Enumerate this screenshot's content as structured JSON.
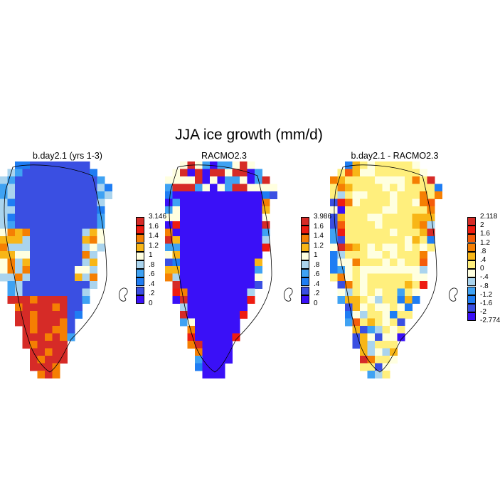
{
  "title": "JJA ice growth (mm/d)",
  "chart_data": [
    {
      "type": "heatmap",
      "title": "b.day2.1 (yrs 1-3)",
      "colorbar": {
        "labels": [
          "3.146",
          "1.6",
          "1.4",
          "1.2",
          "1",
          ".8",
          ".6",
          ".4",
          ".2",
          "0"
        ],
        "colors": [
          "#d62b27",
          "#ee1c11",
          "#f57f03",
          "#f8b617",
          "#ffffe0",
          "#aad4ee",
          "#3fa2f3",
          "#1f7df3",
          "#3a4fe2",
          "#3a10f7"
        ]
      },
      "dominant_value_range": [
        0.2,
        0.4
      ]
    },
    {
      "type": "heatmap",
      "title": "RACMO2.3",
      "colorbar": {
        "labels": [
          "3.986",
          "1.6",
          "1.4",
          "1.2",
          "1",
          ".8",
          ".6",
          ".4",
          ".2",
          "0"
        ],
        "colors": [
          "#d62b27",
          "#ee1c11",
          "#f57f03",
          "#f8b617",
          "#ffffe0",
          "#aad4ee",
          "#3fa2f3",
          "#1f7df3",
          "#3a4fe2",
          "#3a10f7"
        ]
      },
      "dominant_value_range": [
        0,
        0.2
      ]
    },
    {
      "type": "heatmap",
      "title": "b.day2.1 - RACMO2.3",
      "colorbar": {
        "labels": [
          "2.118",
          "2",
          "1.6",
          "1.2",
          ".8",
          ".4",
          "0",
          "-.4",
          "-.8",
          "-1.2",
          "-1.6",
          "-2",
          "-2.774"
        ],
        "colors": [
          "#d62b27",
          "#ee1c11",
          "#f55c0a",
          "#f57f03",
          "#f8b617",
          "#ffef7d",
          "#ffffe0",
          "#aad4ee",
          "#3fa2f3",
          "#1f7df3",
          "#3a4fe2",
          "#3a10f7"
        ]
      },
      "dominant_value_range": [
        0,
        0.4
      ]
    }
  ]
}
